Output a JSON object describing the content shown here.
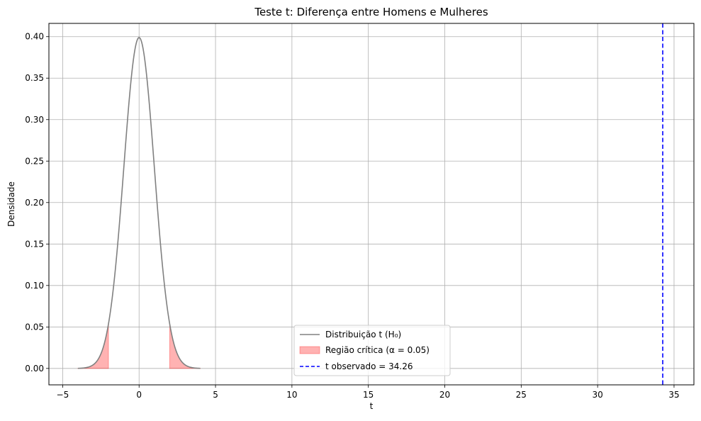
{
  "chart_data": {
    "type": "line",
    "title": "Teste t: Diferença entre Homens e Mulheres",
    "xlabel": "t",
    "ylabel": "Densidade",
    "xlim": [
      -5.9,
      36.3
    ],
    "ylim": [
      -0.0198,
      0.416
    ],
    "xticks": [
      -5,
      0,
      5,
      10,
      15,
      20,
      25,
      30,
      35
    ],
    "yticks": [
      0.0,
      0.05,
      0.1,
      0.15,
      0.2,
      0.25,
      0.3,
      0.35,
      0.4
    ],
    "xtick_labels": [
      "−5",
      "0",
      "5",
      "10",
      "15",
      "20",
      "25",
      "30",
      "35"
    ],
    "ytick_labels": [
      "0.00",
      "0.05",
      "0.10",
      "0.15",
      "0.20",
      "0.25",
      "0.30",
      "0.35",
      "0.40"
    ],
    "grid": true,
    "legend_position": "lower-center",
    "series": [
      {
        "name": "Distribuição t (H₀)",
        "kind": "line",
        "color": "#808080",
        "x": [
          -4.0,
          -3.6,
          -3.2,
          -2.8,
          -2.4,
          -2.0,
          -1.6,
          -1.2,
          -0.8,
          -0.4,
          0.0,
          0.4,
          0.8,
          1.2,
          1.6,
          2.0,
          2.4,
          2.8,
          3.2,
          3.6,
          4.0
        ],
        "y": [
          0.0002,
          0.0006,
          0.0025,
          0.0081,
          0.0228,
          0.0534,
          0.1108,
          0.1939,
          0.2894,
          0.3679,
          0.3969,
          0.3679,
          0.2894,
          0.1939,
          0.1108,
          0.0534,
          0.0228,
          0.0081,
          0.0025,
          0.0006,
          0.0002
        ]
      },
      {
        "name": "Região crítica (α = 0.05)",
        "kind": "fill",
        "color": "#ff0000",
        "opacity": 0.3,
        "regions": [
          {
            "x": [
              -4.0,
              -3.6,
              -3.2,
              -2.8,
              -2.4,
              -2.0
            ],
            "y": [
              0.0002,
              0.0006,
              0.0025,
              0.0081,
              0.0228,
              0.0534
            ]
          },
          {
            "x": [
              2.0,
              2.4,
              2.8,
              3.2,
              3.6,
              4.0
            ],
            "y": [
              0.0534,
              0.0228,
              0.0081,
              0.0025,
              0.0006,
              0.0002
            ]
          }
        ]
      },
      {
        "name": "t observado = 34.26",
        "kind": "vline",
        "color": "#0000ff",
        "dashed": true,
        "x": 34.26
      }
    ]
  }
}
